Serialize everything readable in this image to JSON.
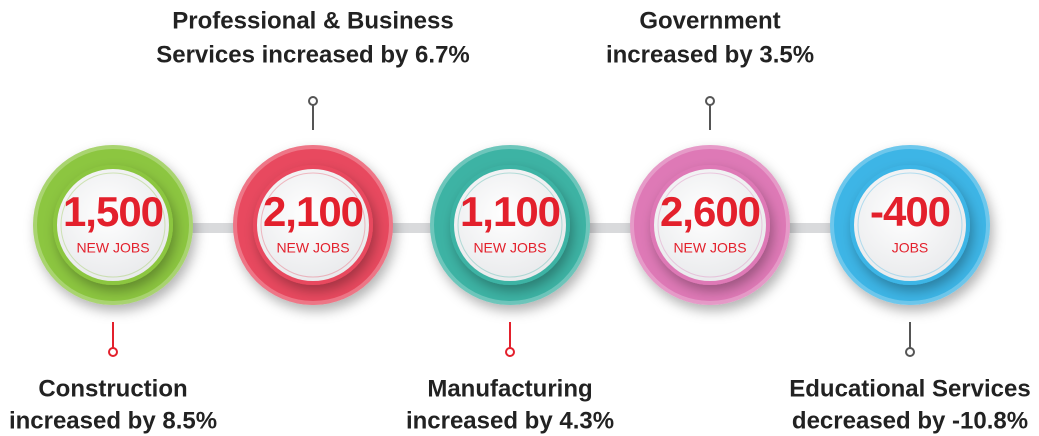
{
  "items": [
    {
      "value": "1,500",
      "unit": "NEW JOBS",
      "label": [
        "Construction",
        "increased by 8.5%"
      ],
      "color": "#8cc63f"
    },
    {
      "value": "2,100",
      "unit": "NEW JOBS",
      "label": [
        "Professional & Business",
        "Services increased by 6.7%"
      ],
      "color": "#e8495e"
    },
    {
      "value": "1,100",
      "unit": "NEW JOBS",
      "label": [
        "Manufacturing",
        "increased by 4.3%"
      ],
      "color": "#3db3a4"
    },
    {
      "value": "2,600",
      "unit": "NEW JOBS",
      "label": [
        "Government",
        "increased by 3.5%"
      ],
      "color": "#de79b6"
    },
    {
      "value": "-400",
      "unit": "JOBS",
      "label": [
        "Educational Services",
        "decreased by -10.8%"
      ],
      "color": "#3cb5e6"
    }
  ]
}
